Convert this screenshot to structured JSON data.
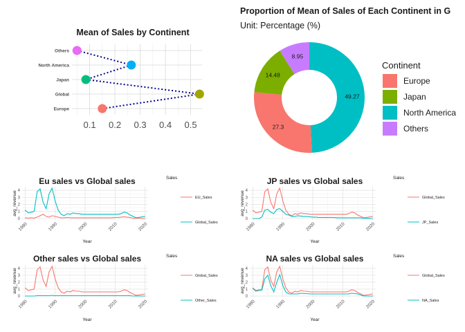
{
  "chart_data": [
    {
      "id": "dot",
      "type": "scatter",
      "title": "Mean of Sales by Continent",
      "categories": [
        "Europe",
        "Global",
        "Japan",
        "North America",
        "Others"
      ],
      "values": [
        0.15,
        0.535,
        0.085,
        0.265,
        0.05
      ],
      "colors": [
        "#F8766D",
        "#A3A500",
        "#00BF7D",
        "#00B0F6",
        "#E76BF3"
      ],
      "x_ticks": [
        0.1,
        0.2,
        0.3,
        0.4,
        0.5
      ],
      "xlim": [
        0.03,
        0.545
      ],
      "grid": true,
      "connector_color": "#00008B"
    },
    {
      "id": "donut",
      "type": "pie",
      "title": "Proportion of Mean of Sales of Each Continent in G",
      "subtitle": "Unit: Percentage (%)",
      "legend_title": "Continent",
      "legend_position": "right",
      "categories": [
        "Europe",
        "Japan",
        "North America",
        "Others"
      ],
      "values": [
        27.3,
        14.48,
        49.27,
        8.95
      ],
      "labels": [
        "27.3",
        "14.48",
        "49.27",
        "8.95"
      ],
      "colors": [
        "#F8766D",
        "#7CAE00",
        "#00BFC4",
        "#C77CFF"
      ]
    },
    {
      "id": "eu",
      "type": "line",
      "title": "Eu sales vs Global sales",
      "xlabel": "Year",
      "ylabel": "avg_revenue",
      "legend_title": "Sales",
      "x_ticks": [
        1980,
        1990,
        2000,
        2010,
        2020
      ],
      "y_ticks": [
        0,
        1,
        2,
        3,
        4
      ],
      "xlim": [
        1979,
        2021
      ],
      "ylim": [
        -0.2,
        4.5
      ],
      "x": [
        1980,
        1981,
        1982,
        1983,
        1984,
        1985,
        1986,
        1987,
        1988,
        1989,
        1990,
        1991,
        1992,
        1993,
        1994,
        1995,
        1996,
        1997,
        1998,
        1999,
        2000,
        2001,
        2002,
        2003,
        2004,
        2005,
        2006,
        2007,
        2008,
        2009,
        2010,
        2011,
        2012,
        2013,
        2014,
        2015,
        2016,
        2017,
        2020
      ],
      "series": [
        {
          "name": "EU_Sales",
          "color": "#F8766D",
          "values": [
            0.1,
            0.05,
            0.1,
            0.05,
            0.2,
            0.4,
            0.6,
            0.3,
            0.2,
            0.4,
            0.3,
            0.2,
            0.1,
            0.1,
            0.15,
            0.1,
            0.1,
            0.1,
            0.1,
            0.1,
            0.1,
            0.1,
            0.1,
            0.1,
            0.1,
            0.1,
            0.1,
            0.1,
            0.1,
            0.1,
            0.15,
            0.15,
            0.2,
            0.25,
            0.2,
            0.15,
            0.05,
            0.05,
            0.0
          ]
        },
        {
          "name": "Global_Sales",
          "color": "#00BFC4",
          "values": [
            1.2,
            0.8,
            0.9,
            1.0,
            3.8,
            4.2,
            2.3,
            1.4,
            3.5,
            4.3,
            2.5,
            1.2,
            0.6,
            0.4,
            0.7,
            0.6,
            0.8,
            0.7,
            0.7,
            0.6,
            0.6,
            0.6,
            0.6,
            0.6,
            0.6,
            0.6,
            0.6,
            0.6,
            0.6,
            0.6,
            0.6,
            0.6,
            0.7,
            0.9,
            0.8,
            0.5,
            0.3,
            0.1,
            0.3
          ]
        }
      ]
    },
    {
      "id": "jp",
      "type": "line",
      "title": "JP sales vs Global sales",
      "xlabel": "Year",
      "ylabel": "avg_revenue",
      "legend_title": "Sales",
      "x_ticks": [
        1980,
        1990,
        2000,
        2010,
        2020
      ],
      "y_ticks": [
        0,
        1,
        2,
        3,
        4
      ],
      "xlim": [
        1979,
        2021
      ],
      "ylim": [
        -0.2,
        4.5
      ],
      "x": [
        1980,
        1981,
        1982,
        1983,
        1984,
        1985,
        1986,
        1987,
        1988,
        1989,
        1990,
        1991,
        1992,
        1993,
        1994,
        1995,
        1996,
        1997,
        1998,
        1999,
        2000,
        2001,
        2002,
        2003,
        2004,
        2005,
        2006,
        2007,
        2008,
        2009,
        2010,
        2011,
        2012,
        2013,
        2014,
        2015,
        2016,
        2017,
        2020
      ],
      "series": [
        {
          "name": "Global_Sales",
          "color": "#F8766D",
          "values": [
            1.2,
            0.8,
            0.9,
            1.0,
            3.8,
            4.2,
            2.3,
            1.4,
            3.5,
            4.3,
            2.5,
            1.2,
            0.6,
            0.4,
            0.7,
            0.6,
            0.8,
            0.7,
            0.7,
            0.6,
            0.6,
            0.6,
            0.6,
            0.6,
            0.6,
            0.6,
            0.6,
            0.6,
            0.6,
            0.6,
            0.6,
            0.6,
            0.7,
            0.9,
            0.8,
            0.5,
            0.3,
            0.1,
            0.3
          ]
        },
        {
          "name": "JP_Sales",
          "color": "#00BFC4",
          "values": [
            0.0,
            0.0,
            0.0,
            0.2,
            1.2,
            1.3,
            0.9,
            0.7,
            1.3,
            1.4,
            1.0,
            0.6,
            0.5,
            0.3,
            0.3,
            0.4,
            0.35,
            0.3,
            0.3,
            0.25,
            0.2,
            0.2,
            0.15,
            0.15,
            0.15,
            0.15,
            0.15,
            0.15,
            0.1,
            0.1,
            0.1,
            0.1,
            0.1,
            0.1,
            0.1,
            0.1,
            0.1,
            0.05,
            0.0
          ]
        }
      ]
    },
    {
      "id": "other",
      "type": "line",
      "title": "Other sales vs Global sales",
      "xlabel": "Year",
      "ylabel": "avg_revenue",
      "legend_title": "Sales",
      "x_ticks": [
        1980,
        1990,
        2000,
        2010,
        2020
      ],
      "y_ticks": [
        0,
        1,
        2,
        3,
        4
      ],
      "xlim": [
        1979,
        2021
      ],
      "ylim": [
        -0.2,
        4.5
      ],
      "x": [
        1980,
        1981,
        1982,
        1983,
        1984,
        1985,
        1986,
        1987,
        1988,
        1989,
        1990,
        1991,
        1992,
        1993,
        1994,
        1995,
        1996,
        1997,
        1998,
        1999,
        2000,
        2001,
        2002,
        2003,
        2004,
        2005,
        2006,
        2007,
        2008,
        2009,
        2010,
        2011,
        2012,
        2013,
        2014,
        2015,
        2016,
        2017,
        2020
      ],
      "series": [
        {
          "name": "Global_Sales",
          "color": "#F8766D",
          "values": [
            1.2,
            0.8,
            0.9,
            1.0,
            3.8,
            4.2,
            2.3,
            1.4,
            3.5,
            4.3,
            2.5,
            1.2,
            0.6,
            0.4,
            0.7,
            0.6,
            0.8,
            0.7,
            0.7,
            0.6,
            0.6,
            0.6,
            0.6,
            0.6,
            0.6,
            0.6,
            0.6,
            0.6,
            0.6,
            0.6,
            0.6,
            0.6,
            0.7,
            0.9,
            0.8,
            0.5,
            0.3,
            0.1,
            0.3
          ]
        },
        {
          "name": "Other_Sales",
          "color": "#00BFC4",
          "values": [
            0.0,
            0.0,
            0.0,
            0.0,
            0.05,
            0.05,
            0.05,
            0.05,
            0.05,
            0.1,
            0.05,
            0.05,
            0.05,
            0.05,
            0.05,
            0.05,
            0.05,
            0.05,
            0.05,
            0.05,
            0.05,
            0.05,
            0.05,
            0.05,
            0.05,
            0.05,
            0.05,
            0.05,
            0.05,
            0.05,
            0.05,
            0.05,
            0.05,
            0.05,
            0.05,
            0.05,
            0.0,
            0.0,
            0.0
          ]
        }
      ]
    },
    {
      "id": "na",
      "type": "line",
      "title": "NA sales vs Global sales",
      "xlabel": "Year",
      "ylabel": "avg_revenue",
      "legend_title": "Sales",
      "x_ticks": [
        1980,
        1990,
        2000,
        2010,
        2020
      ],
      "y_ticks": [
        0,
        1,
        2,
        3,
        4
      ],
      "xlim": [
        1979,
        2021
      ],
      "ylim": [
        -0.2,
        4.5
      ],
      "x": [
        1980,
        1981,
        1982,
        1983,
        1984,
        1985,
        1986,
        1987,
        1988,
        1989,
        1990,
        1991,
        1992,
        1993,
        1994,
        1995,
        1996,
        1997,
        1998,
        1999,
        2000,
        2001,
        2002,
        2003,
        2004,
        2005,
        2006,
        2007,
        2008,
        2009,
        2010,
        2011,
        2012,
        2013,
        2014,
        2015,
        2016,
        2017,
        2020
      ],
      "series": [
        {
          "name": "Global_Sales",
          "color": "#F8766D",
          "values": [
            1.2,
            0.8,
            0.9,
            1.0,
            3.8,
            4.2,
            2.3,
            1.4,
            3.5,
            4.3,
            2.5,
            1.2,
            0.6,
            0.4,
            0.7,
            0.6,
            0.8,
            0.7,
            0.7,
            0.6,
            0.6,
            0.6,
            0.6,
            0.6,
            0.6,
            0.6,
            0.6,
            0.6,
            0.6,
            0.6,
            0.6,
            0.6,
            0.7,
            0.9,
            0.8,
            0.5,
            0.3,
            0.1,
            0.3
          ]
        },
        {
          "name": "NA_Sales",
          "color": "#00BFC4",
          "values": [
            1.1,
            0.7,
            0.8,
            0.8,
            2.5,
            3.0,
            1.5,
            0.6,
            2.0,
            3.1,
            1.5,
            0.6,
            0.3,
            0.3,
            0.3,
            0.3,
            0.4,
            0.35,
            0.35,
            0.3,
            0.3,
            0.3,
            0.3,
            0.3,
            0.3,
            0.3,
            0.3,
            0.3,
            0.3,
            0.3,
            0.3,
            0.3,
            0.3,
            0.4,
            0.35,
            0.3,
            0.15,
            0.0,
            0.0
          ]
        }
      ]
    }
  ]
}
